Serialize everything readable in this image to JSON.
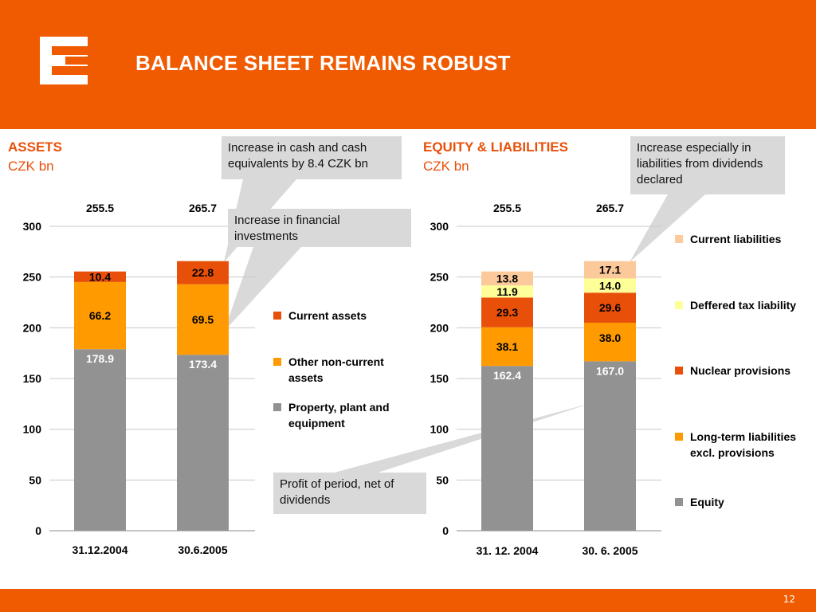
{
  "header": {
    "title": "BALANCE SHEET REMAINS ROBUST"
  },
  "footer": {
    "page_number": "12"
  },
  "colors": {
    "brand": "#f05a00",
    "ppe": "#929292",
    "other_noncurrent": "#ff9a00",
    "current_assets": "#e8500a",
    "equity": "#929292",
    "longterm": "#ff9a00",
    "nuclear": "#e8500a",
    "deferred_tax": "#ffff99",
    "current_liabilities": "#fbc99a"
  },
  "sections": {
    "assets": {
      "title": "ASSETS",
      "unit": "CZK bn"
    },
    "equity_liabilities": {
      "title": "EQUITY & LIABILITIES",
      "unit": "CZK bn"
    }
  },
  "callouts": {
    "cash": "Increase in cash and cash equivalents by 8.4 CZK bn",
    "financial": "Increase in financial investments",
    "profit": "Profit of period, net of dividends",
    "liabilities": "Increase especially in liabilities from dividends declared"
  },
  "legend_assets": [
    {
      "label": "Current assets",
      "color": "#e8500a"
    },
    {
      "label": "Other non-current assets",
      "color": "#ff9a00"
    },
    {
      "label": "Property, plant and equipment",
      "color": "#929292"
    }
  ],
  "legend_liabilities": [
    {
      "label": "Current liabilities",
      "color": "#fbc99a"
    },
    {
      "label": "Deffered tax liability",
      "color": "#ffff99"
    },
    {
      "label": "Nuclear provisions",
      "color": "#e8500a"
    },
    {
      "label": "Long-term liabilities excl. provisions",
      "color": "#ff9a00"
    },
    {
      "label": "Equity",
      "color": "#929292"
    }
  ],
  "chart_data": [
    {
      "type": "bar",
      "stacked": true,
      "categories": [
        "31.12.2004",
        "30.6.2005"
      ],
      "totals": [
        "255.5",
        "265.7"
      ],
      "ylim": [
        0,
        300
      ],
      "yticks": [
        0,
        50,
        100,
        150,
        200,
        250,
        300
      ],
      "grid": true,
      "series": [
        {
          "name": "Property, plant and equipment",
          "values": [
            178.9,
            173.4
          ],
          "labels": [
            "178.9",
            "173.4"
          ],
          "color": "#929292",
          "label_color": "#ffffff"
        },
        {
          "name": "Other non-current assets",
          "values": [
            66.2,
            69.5
          ],
          "labels": [
            "66.2",
            "69.5"
          ],
          "color": "#ff9a00",
          "label_color": "#000000"
        },
        {
          "name": "Current assets",
          "values": [
            10.4,
            22.8
          ],
          "labels": [
            "10.4",
            "22.8"
          ],
          "color": "#e8500a",
          "label_color": "#000000"
        }
      ]
    },
    {
      "type": "bar",
      "stacked": true,
      "categories": [
        "31. 12. 2004",
        "30. 6. 2005"
      ],
      "totals": [
        "255.5",
        "265.7"
      ],
      "ylim": [
        0,
        300
      ],
      "yticks": [
        0,
        50,
        100,
        150,
        200,
        250,
        300
      ],
      "grid": true,
      "series": [
        {
          "name": "Equity",
          "values": [
            162.4,
            167.0
          ],
          "labels": [
            "162.4",
            "167.0"
          ],
          "color": "#929292",
          "label_color": "#ffffff"
        },
        {
          "name": "Long-term liabilities excl. provisions",
          "values": [
            38.1,
            38.0
          ],
          "labels": [
            "38.1",
            "38.0"
          ],
          "color": "#ff9a00",
          "label_color": "#000000"
        },
        {
          "name": "Nuclear provisions",
          "values": [
            29.3,
            29.6
          ],
          "labels": [
            "29.3",
            "29.6"
          ],
          "color": "#e8500a",
          "label_color": "#000000"
        },
        {
          "name": "Deffered tax liability",
          "values": [
            11.9,
            14.0
          ],
          "labels": [
            "11.9",
            "14.0"
          ],
          "color": "#ffff99",
          "label_color": "#000000"
        },
        {
          "name": "Current liabilities",
          "values": [
            13.8,
            17.1
          ],
          "labels": [
            "13.8",
            "17.1"
          ],
          "color": "#fbc99a",
          "label_color": "#000000"
        }
      ]
    }
  ]
}
